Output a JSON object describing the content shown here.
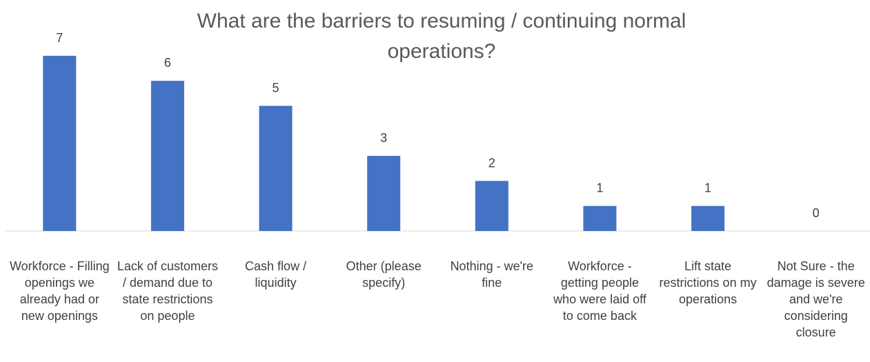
{
  "chart_data": {
    "type": "bar",
    "title": "What are the barriers to resuming / continuing normal operations?",
    "categories": [
      "Workforce - Filling openings we already had or new openings",
      "Lack of customers / demand due to state restrictions on people",
      "Cash flow / liquidity",
      "Other (please specify)",
      "Nothing - we're fine",
      "Workforce - getting people who were laid off to come back",
      "Lift state restrictions on my operations",
      "Not Sure - the damage is severe and we're considering closure"
    ],
    "values": [
      7,
      6,
      5,
      3,
      2,
      1,
      1,
      0
    ],
    "color": "#4472c4",
    "grid": false
  }
}
